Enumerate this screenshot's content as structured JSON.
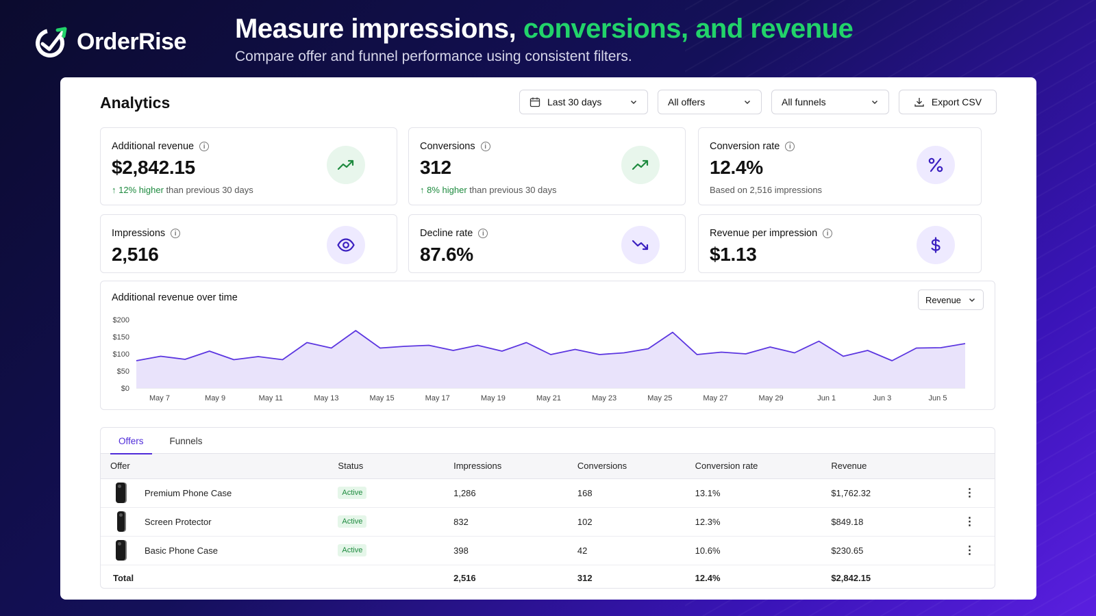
{
  "brand": {
    "name": "OrderRise"
  },
  "hero": {
    "title_main": "Measure impressions,",
    "title_accent": "conversions, and revenue",
    "subtitle": "Compare offer and funnel performance using consistent filters."
  },
  "panel": {
    "title": "Analytics",
    "filters": {
      "date": "Last 30 days",
      "offers": "All offers",
      "funnels": "All funnels",
      "export": "Export CSV"
    }
  },
  "metrics": {
    "additional_revenue": {
      "label": "Additional revenue",
      "value": "$2,842.15",
      "change": "12% higher",
      "change_suffix": "than previous 30 days",
      "icon": "trend-up-icon"
    },
    "conversions": {
      "label": "Conversions",
      "value": "312",
      "change": "8% higher",
      "change_suffix": "than previous 30 days",
      "icon": "trend-up-icon"
    },
    "conversion_rate": {
      "label": "Conversion rate",
      "value": "12.4%",
      "note": "Based on 2,516 impressions",
      "icon": "percent-icon"
    },
    "impressions": {
      "label": "Impressions",
      "value": "2,516",
      "icon": "eye-icon"
    },
    "decline_rate": {
      "label": "Decline rate",
      "value": "87.6%",
      "icon": "trend-down-icon"
    },
    "revenue_per_impression": {
      "label": "Revenue per impression",
      "value": "$1.13",
      "icon": "dollar-icon"
    }
  },
  "chart_section": {
    "title": "Additional revenue over time",
    "metric_select": "Revenue"
  },
  "chart_data": {
    "type": "area",
    "title": "Additional revenue over time",
    "xlabel": "",
    "ylabel": "",
    "ylim": [
      0,
      200
    ],
    "y_ticks": [
      "$200",
      "$150",
      "$100",
      "$50",
      "$0"
    ],
    "x_ticks": [
      "May 7",
      "May 9",
      "May 11",
      "May 13",
      "May 15",
      "May 17",
      "May 19",
      "May 21",
      "May 23",
      "May 25",
      "May 27",
      "May 29",
      "Jun 1",
      "Jun 3",
      "Jun 5"
    ],
    "grid": false,
    "series": [
      {
        "values": [
          80,
          93,
          84,
          108,
          83,
          92,
          83,
          133,
          117,
          168,
          117,
          122,
          125,
          110,
          125,
          108,
          133,
          98,
          113,
          98,
          103,
          115,
          163,
          98,
          105,
          100,
          120,
          103,
          137,
          93,
          110,
          80,
          117,
          118,
          130
        ]
      }
    ],
    "color": "#5b35e0",
    "fill": "#e9e3fb"
  },
  "table": {
    "tabs": [
      "Offers",
      "Funnels"
    ],
    "columns": [
      "Offer",
      "Status",
      "Impressions",
      "Conversions",
      "Conversion rate",
      "Revenue"
    ],
    "rows": [
      {
        "offer": "Premium Phone Case",
        "status": "Active",
        "impressions": "1,286",
        "conversions": "168",
        "rate": "13.1%",
        "revenue": "$1,762.32"
      },
      {
        "offer": "Screen Protector",
        "status": "Active",
        "impressions": "832",
        "conversions": "102",
        "rate": "12.3%",
        "revenue": "$849.18"
      },
      {
        "offer": "Basic Phone Case",
        "status": "Active",
        "impressions": "398",
        "conversions": "42",
        "rate": "10.6%",
        "revenue": "$230.65"
      }
    ],
    "total": {
      "label": "Total",
      "impressions": "2,516",
      "conversions": "312",
      "rate": "12.4%",
      "revenue": "$2,842.15"
    }
  },
  "colors": {
    "accent": "#4f2bd9",
    "success": "#1d8a3e",
    "hero_accent": "#22d36a"
  }
}
